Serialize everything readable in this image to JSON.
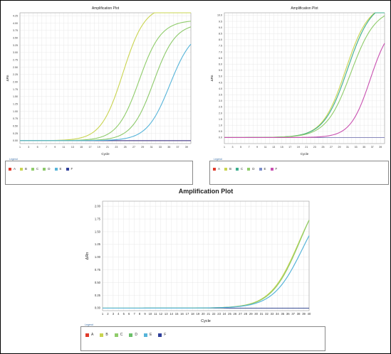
{
  "chart_data": [
    {
      "type": "line",
      "title": "Amplification Plot",
      "xlabel": "Cycle",
      "ylabel": "ΔRn",
      "xlim": [
        1,
        40
      ],
      "ylim": [
        -0.1,
        4.35
      ],
      "x_ticks": [
        1,
        2,
        3,
        4,
        5,
        6,
        7,
        8,
        9,
        10,
        11,
        12,
        13,
        14,
        15,
        16,
        17,
        18,
        19,
        20,
        21,
        22,
        23,
        24,
        25,
        26,
        27,
        28,
        29,
        30,
        31,
        32,
        33,
        34,
        35,
        36,
        37,
        38,
        39,
        40
      ],
      "y_ticks": [
        "0.00",
        "0.25",
        "0.50",
        "0.75",
        "1.00",
        "1.25",
        "1.50",
        "1.75",
        "2.00",
        "2.25",
        "2.50",
        "2.75",
        "3.00",
        "3.25",
        "3.50",
        "3.75",
        "4.00",
        "4.25"
      ],
      "grid": true,
      "legend": {
        "title": "Legend",
        "placement": "bottom"
      },
      "series": [
        {
          "name": "A",
          "color": "#e03a2a",
          "curve": {
            "baseline": 0.0,
            "plateau": 0.0,
            "midpoint": 30,
            "slope": 2
          }
        },
        {
          "name": "B",
          "color": "#c9d44f",
          "curve": {
            "baseline": 0.0,
            "plateau": 4.6,
            "midpoint": 24.5,
            "slope": 2.5
          }
        },
        {
          "name": "C",
          "color": "#8fcc6a",
          "curve": {
            "baseline": 0.0,
            "plateau": 4.1,
            "midpoint": 28.2,
            "slope": 2.5
          }
        },
        {
          "name": "D",
          "color": "#8cc96a",
          "curve": {
            "baseline": 0.0,
            "plateau": 4.0,
            "midpoint": 31.5,
            "slope": 2.5
          }
        },
        {
          "name": "E",
          "color": "#56b4d9",
          "curve": {
            "baseline": 0.0,
            "plateau": 3.8,
            "midpoint": 35.2,
            "slope": 2.6
          }
        },
        {
          "name": "F",
          "color": "#2f3f9a",
          "curve": {
            "baseline": 0.0,
            "plateau": 0.0,
            "midpoint": 30,
            "slope": 2
          }
        }
      ]
    },
    {
      "type": "line",
      "title": "Amplification Plot",
      "xlabel": "Cycle",
      "ylabel": "ΔRn",
      "xlim": [
        1,
        40
      ],
      "ylim": [
        -0.5,
        10.2
      ],
      "x_ticks": [
        1,
        2,
        3,
        4,
        5,
        6,
        7,
        8,
        9,
        10,
        11,
        12,
        13,
        14,
        15,
        16,
        17,
        18,
        19,
        20,
        21,
        22,
        23,
        24,
        25,
        26,
        27,
        28,
        29,
        30,
        31,
        32,
        33,
        34,
        35,
        36,
        37,
        38,
        39,
        40
      ],
      "y_ticks": [
        "0.0",
        "0.5",
        "1.0",
        "1.5",
        "2.0",
        "2.5",
        "3.0",
        "3.5",
        "4.0",
        "4.5",
        "5.0",
        "5.5",
        "6.0",
        "6.5",
        "7.0",
        "7.5",
        "8.0",
        "8.5",
        "9.0",
        "9.5",
        "10.0"
      ],
      "grid": true,
      "legend": {
        "title": "Legend",
        "placement": "bottom"
      },
      "series": [
        {
          "name": "A",
          "color": "#e03a2a",
          "curve": {
            "baseline": 0.0,
            "plateau": 0.0,
            "midpoint": 30,
            "slope": 2
          }
        },
        {
          "name": "B",
          "color": "#c9d44f",
          "curve": {
            "baseline": 0.0,
            "plateau": 11.0,
            "midpoint": 30.5,
            "slope": 2.8
          }
        },
        {
          "name": "C",
          "color": "#3cae8e",
          "curve": {
            "baseline": 0.0,
            "plateau": 11.2,
            "midpoint": 31.0,
            "slope": 2.9
          }
        },
        {
          "name": "D",
          "color": "#8fcc6a",
          "curve": {
            "baseline": 0.0,
            "plateau": 10.6,
            "midpoint": 31.8,
            "slope": 3.0
          }
        },
        {
          "name": "E",
          "color": "#7a8cc9",
          "curve": {
            "baseline": 0.0,
            "plateau": 0.0,
            "midpoint": 30,
            "slope": 2
          }
        },
        {
          "name": "F",
          "color": "#c84fb0",
          "curve": {
            "baseline": 0.0,
            "plateau": 9.5,
            "midpoint": 36.5,
            "slope": 2.4
          }
        }
      ]
    },
    {
      "type": "line",
      "title": "Amplification Plot",
      "xlabel": "Cycle",
      "ylabel": "ΔRn",
      "xlim": [
        1,
        40
      ],
      "ylim": [
        -0.05,
        2.1
      ],
      "x_ticks": [
        1,
        2,
        3,
        4,
        5,
        6,
        7,
        8,
        9,
        10,
        11,
        12,
        13,
        14,
        15,
        16,
        17,
        18,
        19,
        20,
        21,
        22,
        23,
        24,
        25,
        26,
        27,
        28,
        29,
        30,
        31,
        32,
        33,
        34,
        35,
        36,
        37,
        38,
        39,
        40
      ],
      "y_ticks": [
        "0.00",
        "0.25",
        "0.50",
        "0.75",
        "1.00",
        "1.25",
        "1.50",
        "1.75",
        "2.00"
      ],
      "grid": true,
      "legend": {
        "title": "Legend",
        "placement": "bottom"
      },
      "series": [
        {
          "name": "A",
          "color": "#e03a2a",
          "curve": {
            "baseline": 0.0,
            "plateau": 0.0,
            "midpoint": 30,
            "slope": 2
          }
        },
        {
          "name": "B",
          "color": "#c9d44f",
          "curve": {
            "baseline": 0.0,
            "plateau": 2.55,
            "midpoint": 38.0,
            "slope": 2.7
          }
        },
        {
          "name": "C",
          "color": "#8fcc6a",
          "curve": {
            "baseline": 0.0,
            "plateau": 2.65,
            "midpoint": 38.3,
            "slope": 2.7
          }
        },
        {
          "name": "D",
          "color": "#6cc06a",
          "curve": {
            "baseline": 0.0,
            "plateau": 0.0,
            "midpoint": 30,
            "slope": 2
          }
        },
        {
          "name": "E",
          "color": "#56b4d9",
          "curve": {
            "baseline": 0.0,
            "plateau": 2.35,
            "midpoint": 38.8,
            "slope": 2.8
          }
        },
        {
          "name": "F",
          "color": "#2f3f9a",
          "curve": {
            "baseline": 0.0,
            "plateau": 0.0,
            "midpoint": 30,
            "slope": 2
          }
        }
      ]
    }
  ]
}
